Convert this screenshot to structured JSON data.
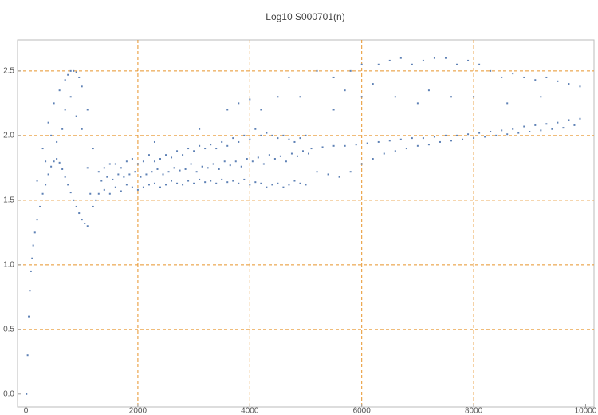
{
  "chart_data": {
    "type": "scatter",
    "title": "Log10 S000701(n)",
    "xlim": [
      -150,
      10150
    ],
    "ylim": [
      -0.1,
      2.74
    ],
    "xticks": [
      0,
      2000,
      4000,
      6000,
      8000,
      10000
    ],
    "yticks": [
      {
        "value": 0,
        "label": "0.0"
      },
      {
        "value": 0.5,
        "label": "0.5"
      },
      {
        "value": 1,
        "label": "1.0"
      },
      {
        "value": 1.5,
        "label": "1.5"
      },
      {
        "value": 2,
        "label": "2.0"
      },
      {
        "value": 2.5,
        "label": "2.5"
      }
    ],
    "xgrid": [
      2000,
      4000,
      6000,
      8000
    ],
    "ygrid": [
      0.5,
      1,
      1.5,
      2,
      2.5
    ],
    "grid_color": "#e8942a",
    "series": [
      {
        "color": "#5e81b5",
        "x": [
          10,
          30,
          50,
          70,
          90,
          110,
          130,
          160,
          200,
          250,
          300,
          350,
          400,
          450,
          500,
          550,
          600,
          650,
          700,
          750,
          800,
          850,
          900,
          950,
          1000,
          1050,
          1100,
          200,
          300,
          400,
          500,
          600,
          700,
          750,
          800,
          850,
          900,
          950,
          1000,
          1100,
          1200,
          350,
          450,
          550,
          650,
          700,
          800,
          900,
          1000,
          1100,
          1150,
          1200,
          1250,
          1300,
          1400,
          1500,
          1600,
          1700,
          1800,
          1900,
          2000,
          2100,
          2200,
          2300,
          2400,
          2500,
          2600,
          2700,
          2800,
          2900,
          3000,
          3100,
          3200,
          3300,
          3400,
          3500,
          3600,
          3700,
          3800,
          3900,
          4000,
          4100,
          4200,
          4300,
          4400,
          4500,
          4600,
          4700,
          4800,
          4900,
          5000,
          1300,
          1400,
          1500,
          1600,
          1700,
          1800,
          1900,
          2000,
          2100,
          2200,
          2300,
          2400,
          2500,
          2600,
          2700,
          2800,
          2900,
          3000,
          3100,
          3200,
          3300,
          3400,
          3500,
          3600,
          3700,
          3800,
          3900,
          4000,
          4100,
          4200,
          4300,
          4400,
          4500,
          4600,
          4700,
          4800,
          4900,
          5000,
          1350,
          1450,
          1550,
          1650,
          1750,
          1850,
          1950,
          2050,
          2150,
          2250,
          2350,
          2450,
          2550,
          2650,
          2750,
          2850,
          2950,
          3050,
          3150,
          3250,
          3350,
          3450,
          3550,
          3650,
          3750,
          3850,
          3950,
          4050,
          4150,
          4250,
          4350,
          4450,
          4550,
          4650,
          4750,
          4850,
          4950,
          5050,
          5100,
          5300,
          5500,
          5700,
          5900,
          6100,
          6300,
          6500,
          6700,
          6900,
          7100,
          7300,
          7500,
          7700,
          7900,
          8100,
          8300,
          8500,
          8700,
          8900,
          9100,
          9300,
          9500,
          9700,
          9900,
          5200,
          5400,
          5600,
          5800,
          6000,
          6200,
          6400,
          6600,
          6800,
          7000,
          7200,
          7400,
          7600,
          7800,
          8000,
          8200,
          8400,
          8600,
          8800,
          9000,
          9200,
          9400,
          9600,
          9800,
          2300,
          3100,
          3600,
          3800,
          4000,
          4200,
          4500,
          4700,
          4900,
          5200,
          5500,
          5700,
          5800,
          6000,
          6200,
          6300,
          6500,
          6700,
          6900,
          7100,
          7300,
          7500,
          7700,
          7900,
          8100,
          8300,
          8500,
          8700,
          8900,
          9100,
          9300,
          9500,
          9700,
          9900,
          5500,
          6000,
          6600,
          7000,
          7200,
          7600,
          8000,
          8600,
          9200
        ],
        "values": [
          0,
          0.3,
          0.6,
          0.8,
          0.95,
          1.05,
          1.15,
          1.25,
          1.35,
          1.45,
          1.55,
          1.62,
          1.7,
          1.76,
          1.8,
          1.82,
          1.79,
          1.74,
          1.68,
          1.62,
          1.56,
          1.5,
          1.45,
          1.4,
          1.35,
          1.32,
          1.3,
          1.65,
          1.9,
          2.1,
          2.25,
          2.35,
          2.43,
          2.47,
          2.5,
          2.5,
          2.49,
          2.45,
          2.38,
          2.2,
          1.9,
          1.8,
          2.0,
          1.95,
          2.05,
          2.2,
          2.3,
          2.15,
          2.05,
          1.75,
          1.55,
          1.45,
          1.5,
          1.55,
          1.58,
          1.55,
          1.6,
          1.57,
          1.62,
          1.6,
          1.58,
          1.6,
          1.62,
          1.63,
          1.6,
          1.62,
          1.65,
          1.63,
          1.62,
          1.65,
          1.63,
          1.66,
          1.64,
          1.65,
          1.63,
          1.66,
          1.64,
          1.65,
          1.63,
          1.66,
          1.62,
          1.64,
          1.63,
          1.6,
          1.62,
          1.63,
          1.6,
          1.62,
          1.65,
          1.63,
          1.62,
          1.72,
          1.75,
          1.78,
          1.78,
          1.75,
          1.8,
          1.82,
          1.78,
          1.8,
          1.85,
          1.8,
          1.82,
          1.85,
          1.83,
          1.88,
          1.85,
          1.9,
          1.88,
          1.92,
          1.9,
          1.93,
          1.9,
          1.95,
          1.92,
          1.98,
          1.95,
          2.0,
          1.97,
          2.05,
          2.0,
          2.02,
          2.0,
          1.98,
          2.0,
          1.97,
          1.95,
          1.98,
          2.0,
          1.65,
          1.68,
          1.66,
          1.7,
          1.68,
          1.7,
          1.72,
          1.68,
          1.7,
          1.72,
          1.74,
          1.7,
          1.72,
          1.75,
          1.73,
          1.74,
          1.78,
          1.72,
          1.76,
          1.75,
          1.78,
          1.74,
          1.8,
          1.77,
          1.8,
          1.76,
          1.82,
          1.8,
          1.83,
          1.78,
          1.85,
          1.82,
          1.84,
          1.8,
          1.86,
          1.84,
          1.88,
          1.86,
          1.9,
          1.91,
          1.92,
          1.92,
          1.93,
          1.94,
          1.95,
          1.96,
          1.97,
          1.98,
          1.98,
          1.99,
          2.0,
          2.0,
          2.01,
          2.02,
          2.03,
          2.04,
          2.05,
          2.07,
          2.08,
          2.09,
          2.1,
          2.12,
          2.13,
          1.72,
          1.7,
          1.68,
          1.72,
          1.78,
          1.82,
          1.86,
          1.88,
          1.9,
          1.92,
          1.93,
          1.95,
          1.96,
          1.97,
          1.98,
          1.99,
          2.0,
          2.01,
          2.02,
          2.03,
          2.04,
          2.05,
          2.06,
          2.08,
          1.95,
          2.05,
          2.2,
          2.25,
          2.28,
          2.2,
          2.3,
          2.45,
          2.3,
          2.5,
          2.45,
          2.35,
          2.5,
          2.55,
          2.4,
          2.55,
          2.58,
          2.6,
          2.55,
          2.58,
          2.6,
          2.6,
          2.55,
          2.58,
          2.55,
          2.5,
          2.45,
          2.48,
          2.45,
          2.43,
          2.45,
          2.42,
          2.4,
          2.38,
          2.2,
          2.3,
          2.3,
          2.25,
          2.35,
          2.3,
          2.3,
          2.25,
          2.3
        ]
      }
    ]
  }
}
